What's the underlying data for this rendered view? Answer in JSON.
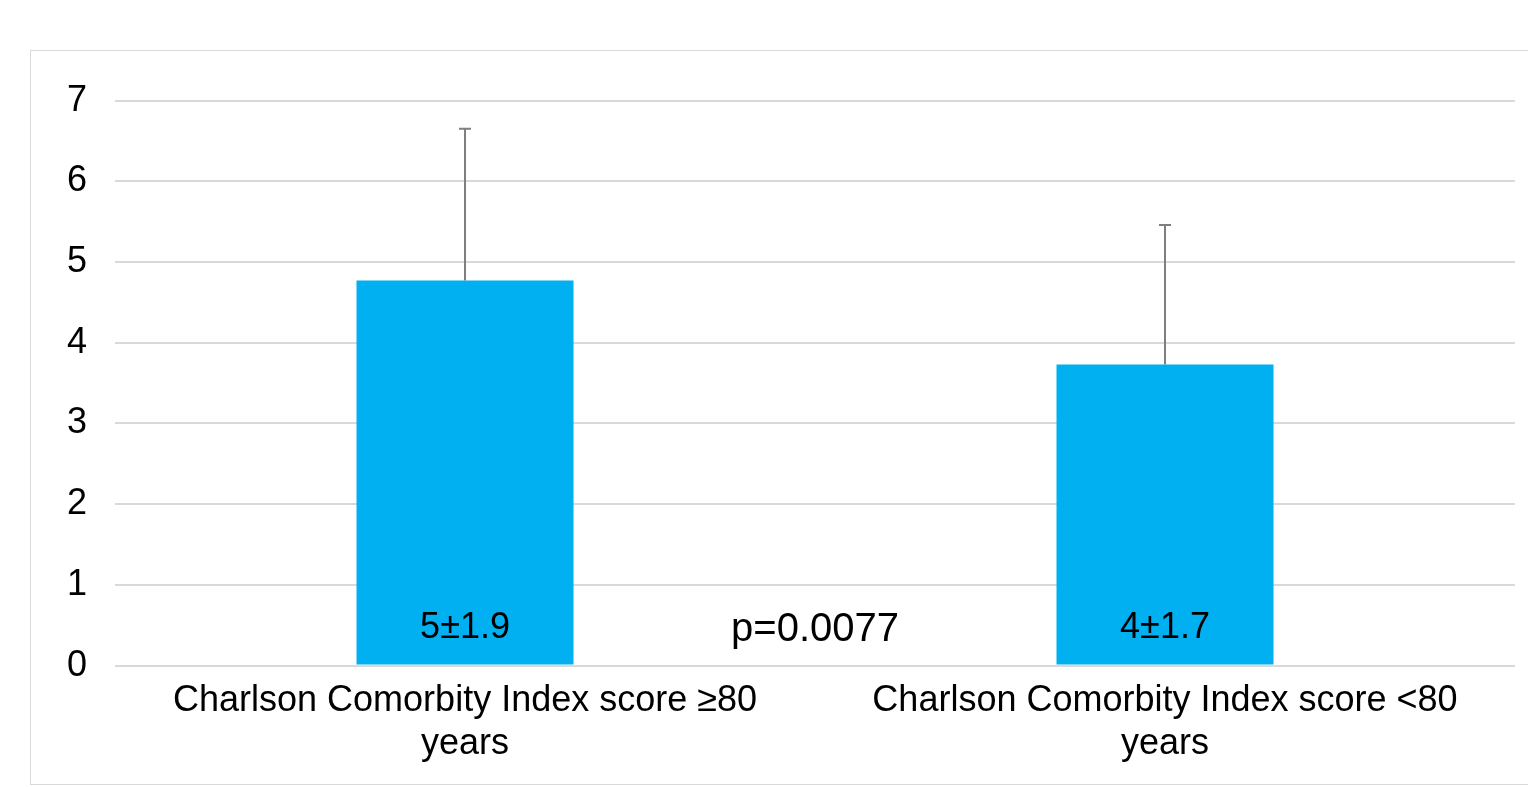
{
  "chart_data": {
    "type": "bar",
    "categories": [
      "Charlson Comorbity Index score ≥80 years",
      "Charlson Comorbity Index score <80 years"
    ],
    "values": [
      4.77,
      3.73
    ],
    "errors": [
      [
        4.77,
        6.65
      ],
      [
        3.73,
        5.46
      ]
    ],
    "value_labels": [
      "5±1.9",
      "4±1.7"
    ],
    "color": "#00b0f0",
    "annotations": [
      "p=0.0077"
    ],
    "ylim": [
      0,
      7
    ],
    "yticks": [
      0,
      1,
      2,
      3,
      4,
      5,
      6,
      7
    ],
    "grid": "y",
    "legend": false
  }
}
